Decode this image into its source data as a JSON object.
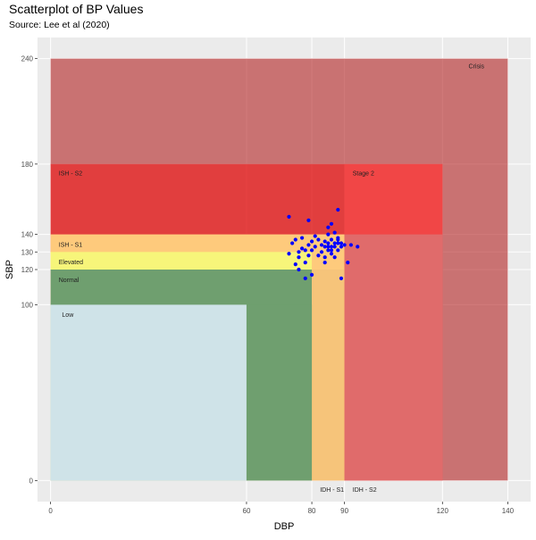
{
  "chart_data": {
    "type": "scatter",
    "title": "Scatterplot of BP Values",
    "subtitle": "Source: Lee et al (2020)",
    "xlabel": "DBP",
    "ylabel": "SBP",
    "xlim": [
      -4,
      147
    ],
    "ylim": [
      -12,
      252
    ],
    "x_ticks": [
      0,
      60,
      80,
      90,
      120,
      140
    ],
    "y_ticks": [
      0,
      100,
      120,
      130,
      140,
      180,
      240
    ],
    "grid": true,
    "legend": "none",
    "regions": [
      {
        "label": "Crisis",
        "x0": 0,
        "x1": 140,
        "y0": 0,
        "y1": 240,
        "color": "#b22222",
        "opacity": 0.6
      },
      {
        "label": "ISH - S2",
        "x0": 0,
        "x1": 120,
        "y0": 0,
        "y1": 180,
        "color": "#ff0000",
        "opacity": 0.45
      },
      {
        "label": "Stage 2",
        "x0": 90,
        "x1": 120,
        "y0": 140,
        "y1": 180,
        "color": "#ff4d4d",
        "opacity": 0.55
      },
      {
        "label": "IDH - S2",
        "x0": 90,
        "x1": 120,
        "y0": 0,
        "y1": 140,
        "color": "#ff4d4d",
        "opacity": 0.0
      },
      {
        "label": "ISH - S1",
        "x0": 0,
        "x1": 90,
        "y0": 0,
        "y1": 140,
        "color": "#ffd27f",
        "opacity": 0.95
      },
      {
        "label": "IDH - S1",
        "x0": 80,
        "x1": 90,
        "y0": 0,
        "y1": 140,
        "color": "#ffd27f",
        "opacity": 0.0
      },
      {
        "label": "Elevated",
        "x0": 0,
        "x1": 80,
        "y0": 120,
        "y1": 130,
        "color": "#f7f57a",
        "opacity": 1.0
      },
      {
        "label": "Normal",
        "x0": 0,
        "x1": 80,
        "y0": 0,
        "y1": 120,
        "color": "#6f9f6f",
        "opacity": 1.0
      },
      {
        "label": "Low",
        "x0": 0,
        "x1": 60,
        "y0": 0,
        "y1": 100,
        "color": "#cfe3e8",
        "opacity": 1.0
      }
    ],
    "region_labels": [
      {
        "text": "Crisis",
        "x": 128,
        "y": 236
      },
      {
        "text": "ISH - S2",
        "x": 2.5,
        "y": 175
      },
      {
        "text": "Stage 2",
        "x": 92.5,
        "y": 175
      },
      {
        "text": "ISH - S1",
        "x": 2.5,
        "y": 134.5
      },
      {
        "text": "Elevated",
        "x": 2.5,
        "y": 124.5
      },
      {
        "text": "Normal",
        "x": 2.5,
        "y": 114.5
      },
      {
        "text": "Low",
        "x": 3.5,
        "y": 94.5
      },
      {
        "text": "IDH - S1",
        "x": 82.5,
        "y": -5
      },
      {
        "text": "IDH - S2",
        "x": 92.5,
        "y": -5
      }
    ],
    "point_color": "#0000ff",
    "points": [
      [
        73,
        129
      ],
      [
        74,
        135
      ],
      [
        75,
        123
      ],
      [
        75,
        137
      ],
      [
        73,
        150
      ],
      [
        76,
        120
      ],
      [
        76,
        127
      ],
      [
        76,
        130
      ],
      [
        77,
        132
      ],
      [
        77,
        138
      ],
      [
        78,
        115
      ],
      [
        78,
        124
      ],
      [
        78,
        131
      ],
      [
        79,
        134
      ],
      [
        79,
        128
      ],
      [
        79,
        148
      ],
      [
        80,
        136
      ],
      [
        80,
        131
      ],
      [
        80,
        117
      ],
      [
        81,
        133
      ],
      [
        81,
        139
      ],
      [
        82,
        128
      ],
      [
        82,
        137
      ],
      [
        83,
        134
      ],
      [
        83,
        130
      ],
      [
        84,
        133
      ],
      [
        84,
        136
      ],
      [
        84,
        127
      ],
      [
        85,
        135
      ],
      [
        85,
        131
      ],
      [
        85,
        144
      ],
      [
        85,
        140
      ],
      [
        85,
        133
      ],
      [
        86,
        129
      ],
      [
        86,
        137
      ],
      [
        86,
        146
      ],
      [
        87,
        135
      ],
      [
        87,
        141
      ],
      [
        87,
        133
      ],
      [
        88,
        137
      ],
      [
        88,
        131
      ],
      [
        88,
        154
      ],
      [
        89,
        135
      ],
      [
        89,
        115
      ],
      [
        91,
        124
      ],
      [
        92,
        134
      ],
      [
        94,
        133
      ],
      [
        84,
        124
      ],
      [
        86,
        131
      ],
      [
        87,
        127
      ],
      [
        88,
        135
      ],
      [
        89,
        133
      ],
      [
        90,
        134
      ],
      [
        86,
        133
      ],
      [
        88,
        138
      ]
    ]
  }
}
